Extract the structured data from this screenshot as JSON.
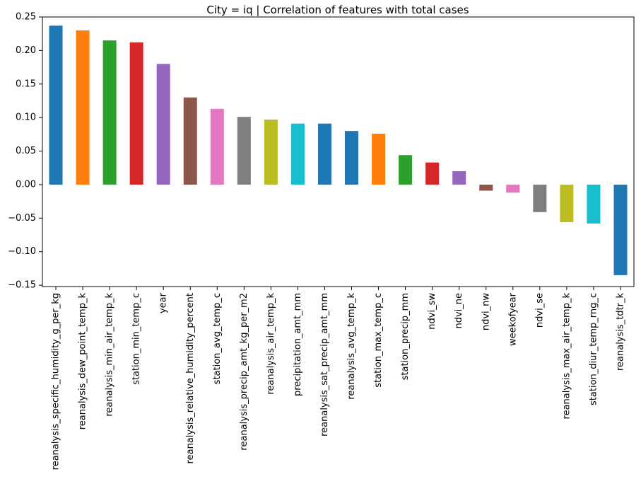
{
  "chart_data": {
    "type": "bar",
    "title": "City = iq | Correlation of features with total cases",
    "xlabel": "",
    "ylabel": "",
    "ylim": [
      -0.152,
      0.25
    ],
    "yticks": [
      0.25,
      0.2,
      0.15,
      0.1,
      0.05,
      0.0,
      -0.05,
      -0.1,
      -0.15
    ],
    "ytick_labels": [
      "0.25",
      "0.20",
      "0.15",
      "0.10",
      "0.05",
      "0.00",
      "−0.05",
      "−0.10",
      "−0.15"
    ],
    "grid": false,
    "legend": "none",
    "categories": [
      "reanalysis_specific_humidity_g_per_kg",
      "reanalysis_dew_point_temp_k",
      "reanalysis_min_air_temp_k",
      "station_min_temp_c",
      "year",
      "reanalysis_relative_humidity_percent",
      "station_avg_temp_c",
      "reanalysis_precip_amt_kg_per_m2",
      "reanalysis_air_temp_k",
      "precipitation_amt_mm",
      "reanalysis_sat_precip_amt_mm",
      "reanalysis_avg_temp_k",
      "station_max_temp_c",
      "station_precip_mm",
      "ndvi_sw",
      "ndvi_ne",
      "ndvi_nw",
      "weekofyear",
      "ndvi_se",
      "reanalysis_max_air_temp_k",
      "station_diur_temp_rng_c",
      "reanalysis_tdtr_k"
    ],
    "values": [
      0.237,
      0.23,
      0.215,
      0.212,
      0.18,
      0.13,
      0.113,
      0.101,
      0.097,
      0.091,
      0.091,
      0.08,
      0.076,
      0.044,
      0.033,
      0.02,
      -0.009,
      -0.012,
      -0.041,
      -0.056,
      -0.058,
      -0.135
    ],
    "bar_colors": [
      "#1f77b4",
      "#ff7f0e",
      "#2ca02c",
      "#d62728",
      "#9467bd",
      "#8c564b",
      "#e377c2",
      "#7f7f7f",
      "#bcbd22",
      "#17becf",
      "#1f77b4",
      "#1f77b4",
      "#ff7f0e",
      "#2ca02c",
      "#d62728",
      "#9467bd",
      "#8c564b",
      "#e377c2",
      "#7f7f7f",
      "#bcbd22",
      "#17becf",
      "#1f77b4"
    ]
  }
}
